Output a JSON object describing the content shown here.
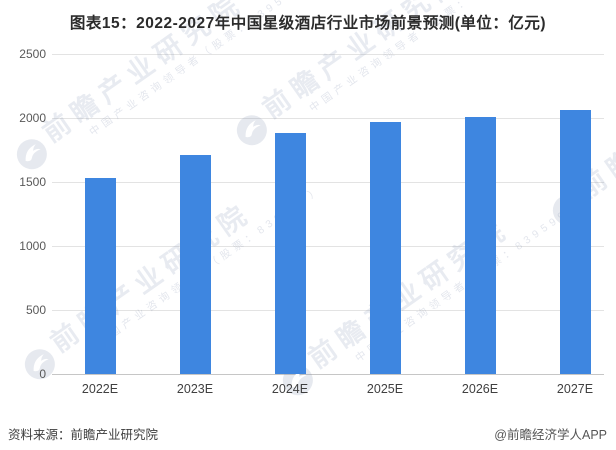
{
  "chart_data": {
    "type": "bar",
    "title": "图表15：2022-2027年中国星级酒店行业市场前景预测(单位：亿元)",
    "categories": [
      "2022E",
      "2023E",
      "2024E",
      "2025E",
      "2026E",
      "2027E"
    ],
    "values": [
      1535,
      1710,
      1885,
      1965,
      2005,
      2060
    ],
    "unit": "亿元",
    "xlabel": "",
    "ylabel": "",
    "ylim": [
      0,
      2500
    ],
    "yticks": [
      0,
      500,
      1000,
      1500,
      2000,
      2500
    ],
    "grid": true,
    "legend_position": "none",
    "bar_color": "#3e86e0"
  },
  "footer": {
    "source": "资料来源：前瞻产业研究院",
    "credit": "@前瞻经济学人APP"
  },
  "watermark": {
    "text": "前瞻产业研究院",
    "subtext": "中国产业咨询领导者（股票：839599）",
    "logo": "qianzhan-logo-icon"
  }
}
